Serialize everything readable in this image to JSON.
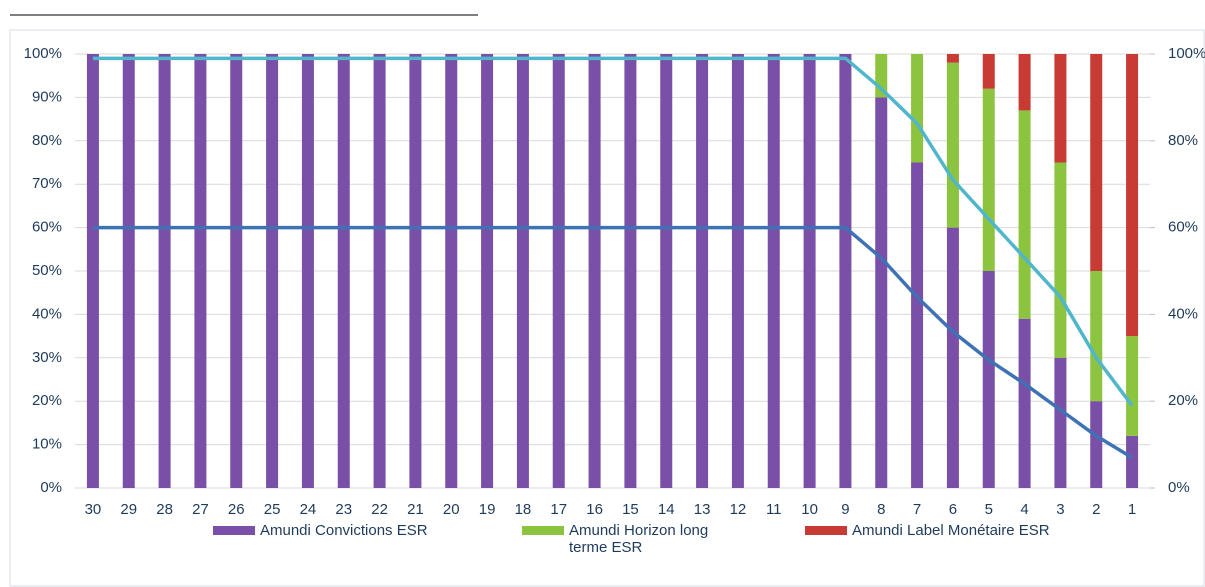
{
  "chart_data": {
    "type": "bar",
    "stacked": true,
    "categories": [
      "30",
      "29",
      "28",
      "27",
      "26",
      "25",
      "24",
      "23",
      "22",
      "21",
      "20",
      "19",
      "18",
      "17",
      "16",
      "15",
      "14",
      "13",
      "12",
      "11",
      "10",
      "9",
      "8",
      "7",
      "6",
      "5",
      "4",
      "3",
      "2",
      "1"
    ],
    "series": [
      {
        "name": "Amundi Convictions ESR",
        "color": "#7a4fa8",
        "values": [
          100,
          100,
          100,
          100,
          100,
          100,
          100,
          100,
          100,
          100,
          100,
          100,
          100,
          100,
          100,
          100,
          100,
          100,
          100,
          100,
          100,
          100,
          90,
          75,
          60,
          50,
          39,
          30,
          20,
          12
        ]
      },
      {
        "name": "Amundi Horizon long terme ESR",
        "color": "#8dc43f",
        "values": [
          0,
          0,
          0,
          0,
          0,
          0,
          0,
          0,
          0,
          0,
          0,
          0,
          0,
          0,
          0,
          0,
          0,
          0,
          0,
          0,
          0,
          0,
          10,
          25,
          38,
          42,
          48,
          45,
          30,
          23
        ]
      },
      {
        "name": "Amundi Label Monétaire ESR",
        "color": "#c83a34",
        "values": [
          0,
          0,
          0,
          0,
          0,
          0,
          0,
          0,
          0,
          0,
          0,
          0,
          0,
          0,
          0,
          0,
          0,
          0,
          0,
          0,
          0,
          0,
          0,
          0,
          2,
          8,
          13,
          25,
          50,
          65
        ]
      }
    ],
    "lines": [
      {
        "color": "#4fb6cb",
        "axis": "y2",
        "values": [
          99,
          99,
          99,
          99,
          99,
          99,
          99,
          99,
          99,
          99,
          99,
          99,
          99,
          99,
          99,
          99,
          99,
          99,
          99,
          99,
          99,
          99,
          92,
          84,
          71,
          62,
          53,
          44,
          30,
          19
        ]
      },
      {
        "color": "#3f72b4",
        "axis": "y2",
        "values": [
          60,
          60,
          60,
          60,
          60,
          60,
          60,
          60,
          60,
          60,
          60,
          60,
          60,
          60,
          60,
          60,
          60,
          60,
          60,
          60,
          60,
          60,
          53,
          44,
          36,
          29.5,
          24,
          18,
          12,
          7
        ]
      }
    ],
    "ylim": [
      0,
      100
    ],
    "yticks": [
      {
        "value": 0,
        "label": "0%"
      },
      {
        "value": 10,
        "label": "10%"
      },
      {
        "value": 20,
        "label": "20%"
      },
      {
        "value": 30,
        "label": "30%"
      },
      {
        "value": 40,
        "label": "40%"
      },
      {
        "value": 50,
        "label": "50%"
      },
      {
        "value": 60,
        "label": "60%"
      },
      {
        "value": 70,
        "label": "70%"
      },
      {
        "value": 80,
        "label": "80%"
      },
      {
        "value": 90,
        "label": "90%"
      },
      {
        "value": 100,
        "label": "100%"
      }
    ],
    "y2lim": [
      0,
      100
    ],
    "y2ticks": [
      {
        "value": 0,
        "label": "0%"
      },
      {
        "value": 20,
        "label": "20%"
      },
      {
        "value": 40,
        "label": "40%"
      },
      {
        "value": 60,
        "label": "60%"
      },
      {
        "value": 80,
        "label": "80%"
      },
      {
        "value": 100,
        "label": "100%"
      }
    ],
    "grid": true,
    "legend": "bottom"
  }
}
